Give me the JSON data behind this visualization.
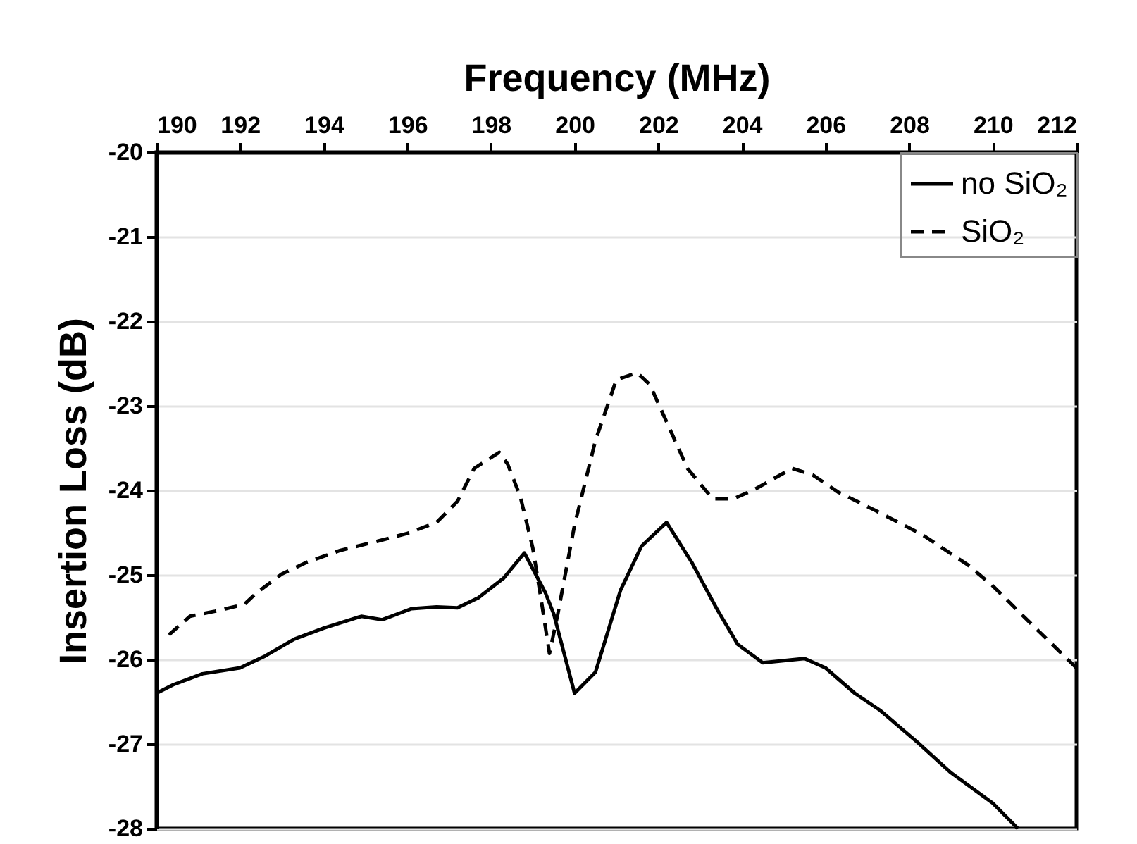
{
  "chart_data": {
    "type": "line",
    "xlabel": "Frequency (MHz)",
    "ylabel": "Insertion Loss (dB)",
    "xlim": [
      190,
      212
    ],
    "xticks": [
      190,
      192,
      194,
      196,
      198,
      200,
      202,
      204,
      206,
      208,
      210,
      212
    ],
    "ylim": [
      -28,
      -20
    ],
    "yticks": [
      -20,
      -21,
      -22,
      -23,
      -24,
      -25,
      -26,
      -27,
      -28
    ],
    "grid": "y",
    "legend": "top right",
    "series": [
      {
        "name": "no SiO₂",
        "color": "#000000",
        "line_style": "solid",
        "x": [
          190,
          190.4,
          191.1,
          192,
          192.6,
          193.3,
          194,
          194.9,
          195.4,
          196.1,
          196.7,
          197.2,
          197.7,
          198.3,
          198.8,
          199.3,
          199.5,
          200,
          200.5,
          201.1,
          201.6,
          202.2,
          202.8,
          203.4,
          203.9,
          204.5,
          205.5,
          206,
          206.7,
          207.3,
          208.2,
          209,
          210,
          210.6
        ],
        "values": [
          -26.4,
          -26.3,
          -26.17,
          -26.1,
          -25.96,
          -25.76,
          -25.63,
          -25.49,
          -25.53,
          -25.4,
          -25.38,
          -25.39,
          -25.27,
          -25.04,
          -24.74,
          -25.21,
          -25.46,
          -26.4,
          -26.15,
          -25.18,
          -24.66,
          -24.38,
          -24.85,
          -25.4,
          -25.82,
          -26.04,
          -25.99,
          -26.1,
          -26.4,
          -26.6,
          -26.98,
          -27.34,
          -27.7,
          -28
        ]
      },
      {
        "name": "SiO₂",
        "color": "#000000",
        "line_style": "dashed",
        "x": [
          190.3,
          190.8,
          191.4,
          192.1,
          192.4,
          193,
          193.6,
          194.4,
          195.3,
          196,
          196.7,
          197.2,
          197.6,
          198.2,
          198.4,
          198.7,
          199,
          199.2,
          199.4,
          199.6,
          200,
          200.5,
          201,
          201.5,
          201.8,
          202.7,
          203.3,
          203.8,
          204.3,
          205.2,
          205.7,
          206.3,
          207.2,
          208.3,
          209.4,
          210,
          210.9,
          212
        ],
        "values": [
          -25.71,
          -25.49,
          -25.43,
          -25.35,
          -25.21,
          -24.99,
          -24.85,
          -24.71,
          -24.6,
          -24.51,
          -24.38,
          -24.13,
          -23.74,
          -23.55,
          -23.69,
          -24.07,
          -24.68,
          -25.29,
          -25.93,
          -25.46,
          -24.41,
          -23.41,
          -22.69,
          -22.61,
          -22.75,
          -23.74,
          -24.1,
          -24.1,
          -23.99,
          -23.74,
          -23.82,
          -24.02,
          -24.24,
          -24.52,
          -24.88,
          -25.13,
          -25.57,
          -26.1
        ]
      }
    ]
  }
}
